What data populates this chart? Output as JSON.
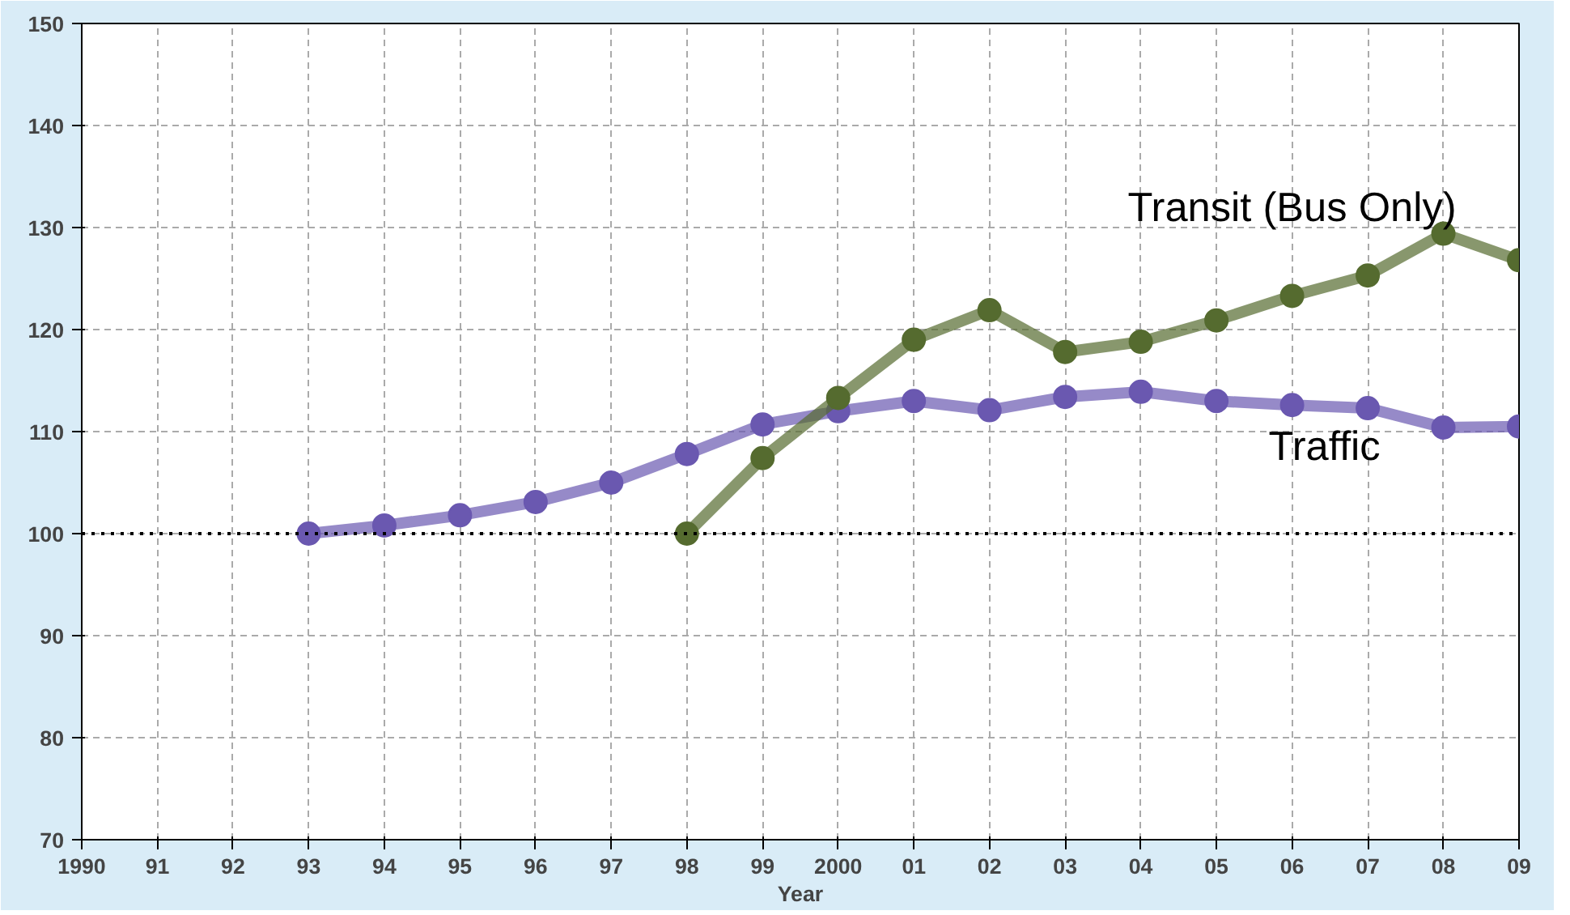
{
  "chart_data": {
    "type": "line",
    "xlabel": "Year",
    "x": [
      1993,
      1994,
      1995,
      1996,
      1997,
      1998,
      1999,
      2000,
      2001,
      2002,
      2003,
      2004,
      2005,
      2006,
      2007,
      2008,
      2009
    ],
    "series": [
      {
        "name": "Traffic",
        "color": "#6a58b0",
        "values": [
          100,
          100.8,
          101.8,
          103.1,
          105,
          107.8,
          110.7,
          112,
          113,
          112.1,
          113.4,
          113.9,
          113,
          112.6,
          112.3,
          110.4,
          110.5
        ]
      },
      {
        "name": "Transit (Bus Only)",
        "color": "#556b2f",
        "values": [
          null,
          null,
          null,
          null,
          null,
          100,
          107.4,
          113.3,
          119,
          121.9,
          117.8,
          118.8,
          120.9,
          123.3,
          125.3,
          129.4,
          126.8
        ]
      }
    ],
    "xlim": [
      1990,
      2009
    ],
    "ylim": [
      70,
      150
    ],
    "xticks": [
      1990,
      {
        "value": 1991,
        "label": "91"
      },
      {
        "value": 1992,
        "label": "92"
      },
      {
        "value": 1993,
        "label": "93"
      },
      {
        "value": 1994,
        "label": "94"
      },
      {
        "value": 1995,
        "label": "95"
      },
      {
        "value": 1996,
        "label": "96"
      },
      {
        "value": 1997,
        "label": "97"
      },
      {
        "value": 1998,
        "label": "98"
      },
      {
        "value": 1999,
        "label": "99"
      },
      2000,
      {
        "value": 2001,
        "label": "01"
      },
      {
        "value": 2002,
        "label": "02"
      },
      {
        "value": 2003,
        "label": "03"
      },
      {
        "value": 2004,
        "label": "04"
      },
      {
        "value": 2005,
        "label": "05"
      },
      {
        "value": 2006,
        "label": "06"
      },
      {
        "value": 2007,
        "label": "07"
      },
      {
        "value": 2008,
        "label": "08"
      },
      {
        "value": 2009,
        "label": "09"
      }
    ],
    "yticks": [
      70,
      80,
      90,
      100,
      110,
      120,
      130,
      140,
      150
    ],
    "ref_lines": [
      {
        "axis": "y",
        "value": 100,
        "color": "#000000",
        "line_style": "dotted"
      }
    ],
    "grid": true,
    "marker": "circle"
  }
}
